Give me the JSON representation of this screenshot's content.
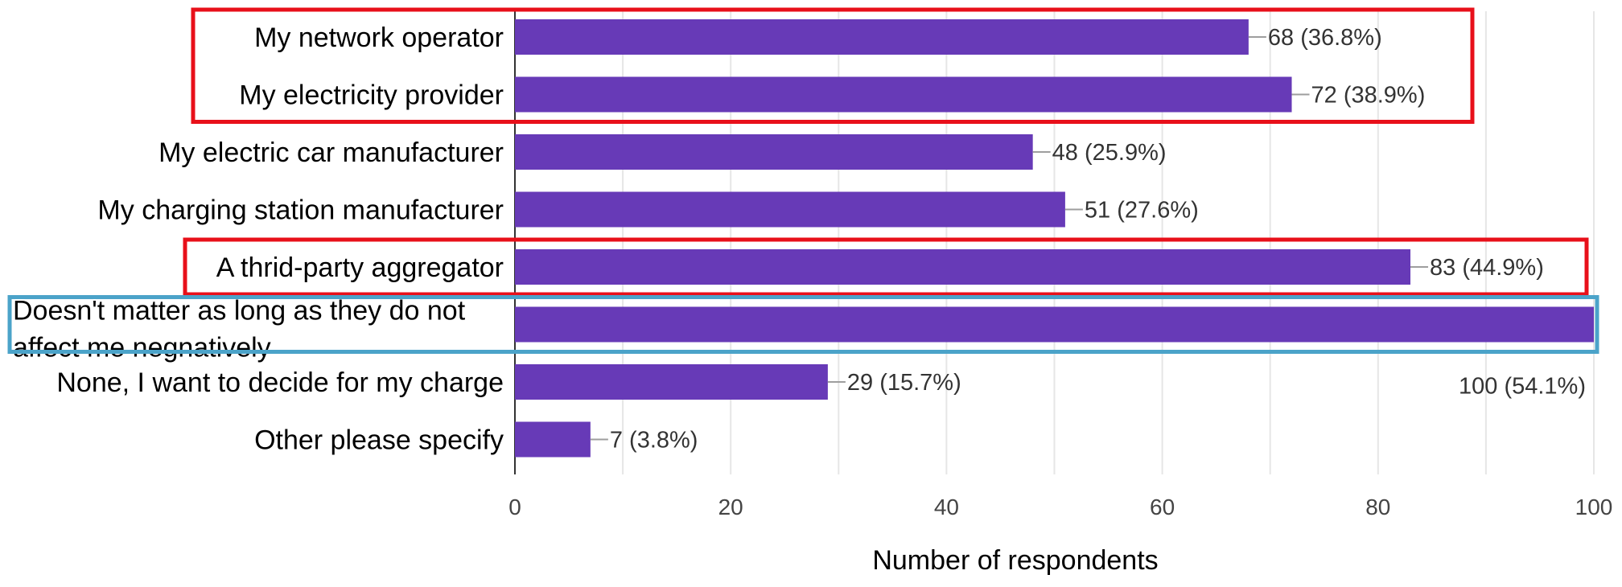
{
  "chart_data": {
    "type": "bar",
    "orientation": "horizontal",
    "title": "",
    "xlabel": "Number of respondents",
    "ylabel": "",
    "xlim": [
      0,
      100
    ],
    "x_ticks": [
      "0",
      "20",
      "40",
      "60",
      "80",
      "100"
    ],
    "grid": true,
    "bar_color": "#673ab7",
    "categories": [
      [
        "My network operator"
      ],
      [
        "My electricity provider"
      ],
      [
        "My electric car manufacturer"
      ],
      [
        "My charging station manufacturer"
      ],
      [
        "A thrid-party aggregator"
      ],
      [
        "Doesn't matter as long as they do not",
        "affect me negnatively"
      ],
      [
        "None, I want to decide for my charge"
      ],
      [
        "Other please specify"
      ]
    ],
    "values": [
      68,
      72,
      48,
      51,
      83,
      100,
      29,
      7
    ],
    "data_labels": [
      "68 (36.8%)",
      "72 (38.9%)",
      "48 (25.9%)",
      "51 (27.6%)",
      "83 (44.9%)",
      "100 (54.1%)",
      "29 (15.7%)",
      "7 (3.8%)"
    ],
    "highlights": [
      {
        "categories": [
          0,
          1
        ],
        "color": "#e8101a"
      },
      {
        "categories": [
          4
        ],
        "color": "#e8101a"
      },
      {
        "categories": [
          5
        ],
        "color": "#4ba3c9"
      }
    ]
  }
}
